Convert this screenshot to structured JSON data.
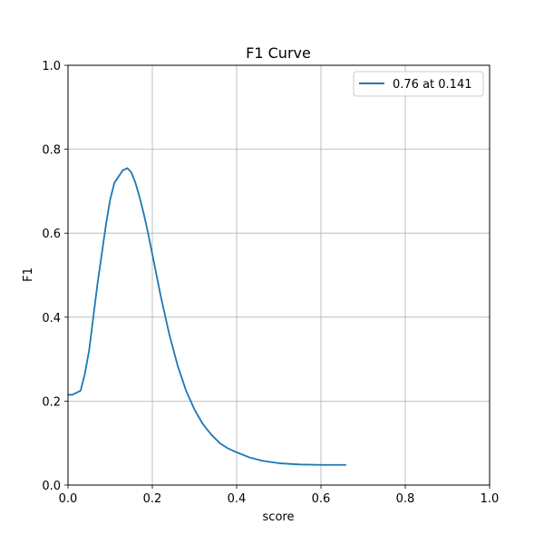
{
  "chart_data": {
    "type": "line",
    "title": "F1 Curve",
    "xlabel": "score",
    "ylabel": "F1",
    "xlim": [
      0,
      1
    ],
    "ylim": [
      0,
      1
    ],
    "xticks": [
      "0.0",
      "0.2",
      "0.4",
      "0.6",
      "0.8",
      "1.0"
    ],
    "yticks": [
      "0.0",
      "0.2",
      "0.4",
      "0.6",
      "0.8",
      "1.0"
    ],
    "grid": true,
    "legend_position": "top-right",
    "series": [
      {
        "name": "0.76 at 0.141",
        "color": "#1f77b4",
        "x": [
          0.0,
          0.01,
          0.02,
          0.03,
          0.04,
          0.05,
          0.06,
          0.07,
          0.08,
          0.09,
          0.1,
          0.11,
          0.12,
          0.13,
          0.135,
          0.141,
          0.15,
          0.16,
          0.17,
          0.18,
          0.19,
          0.2,
          0.22,
          0.24,
          0.26,
          0.28,
          0.3,
          0.32,
          0.34,
          0.36,
          0.38,
          0.4,
          0.43,
          0.46,
          0.5,
          0.55,
          0.6,
          0.66
        ],
        "y": [
          0.215,
          0.215,
          0.22,
          0.225,
          0.265,
          0.32,
          0.4,
          0.48,
          0.55,
          0.62,
          0.68,
          0.72,
          0.735,
          0.75,
          0.752,
          0.755,
          0.745,
          0.72,
          0.685,
          0.645,
          0.6,
          0.55,
          0.45,
          0.36,
          0.285,
          0.225,
          0.18,
          0.145,
          0.12,
          0.1,
          0.087,
          0.078,
          0.066,
          0.058,
          0.052,
          0.049,
          0.048,
          0.048
        ]
      }
    ]
  }
}
